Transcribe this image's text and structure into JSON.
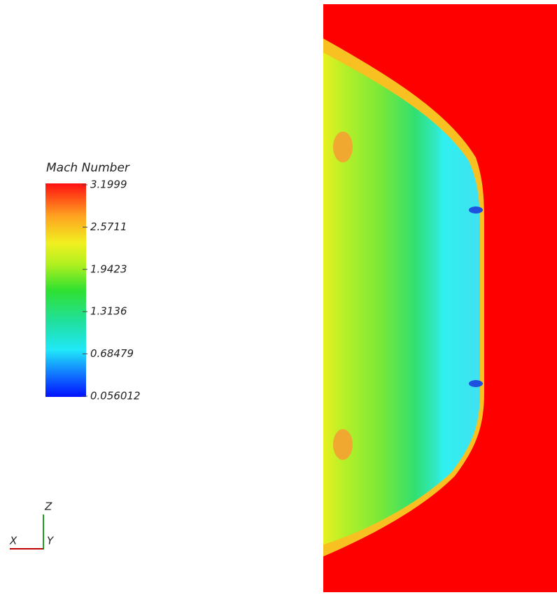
{
  "legend": {
    "title": "Mach Number",
    "ticks": [
      3.1999,
      2.5711,
      1.9423,
      1.3136,
      0.68479,
      0.056012
    ]
  },
  "axes_triad": {
    "z": "Z",
    "x": "X",
    "y": "Y"
  }
}
